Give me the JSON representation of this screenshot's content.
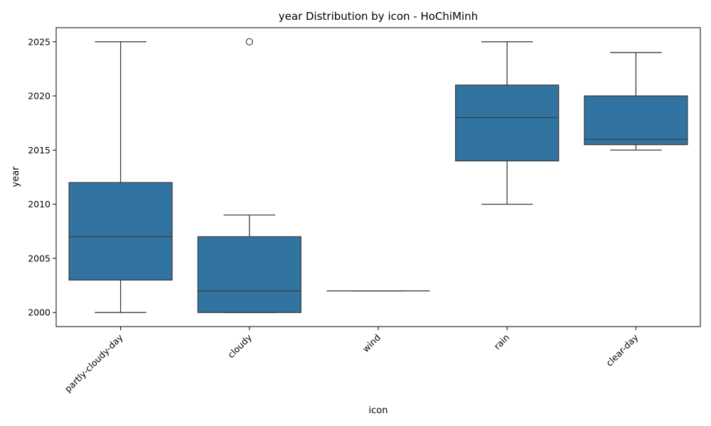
{
  "chart_data": {
    "type": "box",
    "title": "year Distribution by icon - HoChiMinh",
    "xlabel": "icon",
    "ylabel": "year",
    "ylim": [
      1998.7,
      2026.3
    ],
    "yticks": [
      2000,
      2005,
      2010,
      2015,
      2020,
      2025
    ],
    "grid": false,
    "color": "#3274a1",
    "categories": [
      "partly-cloudy-day",
      "cloudy",
      "wind",
      "rain",
      "clear-day"
    ],
    "boxes": [
      {
        "category": "partly-cloudy-day",
        "whisker_low": 2000,
        "q1": 2003,
        "median": 2007,
        "q3": 2012,
        "whisker_high": 2025,
        "outliers": []
      },
      {
        "category": "cloudy",
        "whisker_low": 2000,
        "q1": 2000,
        "median": 2002,
        "q3": 2007,
        "whisker_high": 2009,
        "outliers": [
          2025
        ]
      },
      {
        "category": "wind",
        "whisker_low": 2002,
        "q1": 2002,
        "median": 2002,
        "q3": 2002,
        "whisker_high": 2002,
        "outliers": []
      },
      {
        "category": "rain",
        "whisker_low": 2010,
        "q1": 2014,
        "median": 2018,
        "q3": 2021,
        "whisker_high": 2025,
        "outliers": []
      },
      {
        "category": "clear-day",
        "whisker_low": 2015,
        "q1": 2015.5,
        "median": 2016,
        "q3": 2020,
        "whisker_high": 2024,
        "outliers": []
      }
    ]
  }
}
